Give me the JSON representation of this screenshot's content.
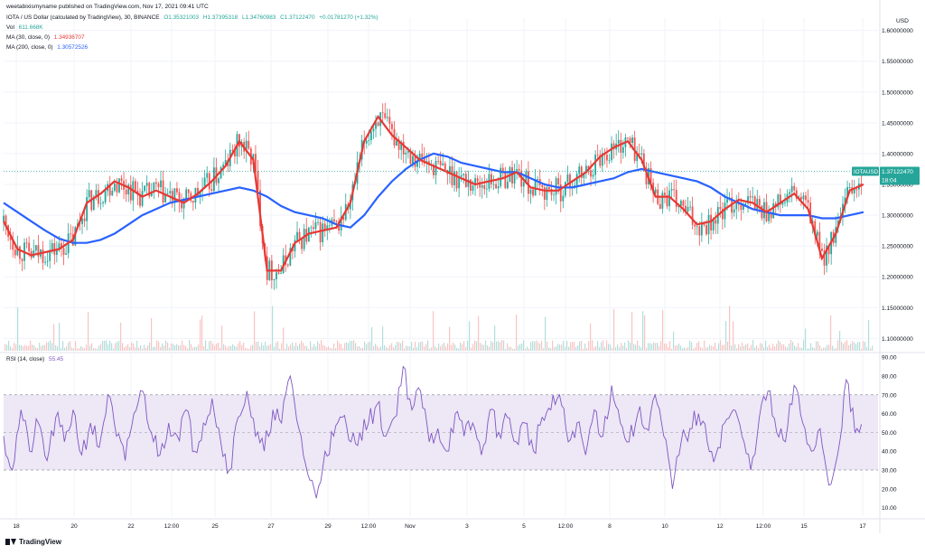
{
  "attribution": "weetabixismyname published on TradingView.com, Nov 17, 2021 09:41 UTC",
  "symbol_line": {
    "title": "IOTA / US Dollar (calculated by TradingView), 30, BINANCE",
    "open": "O1.35321003",
    "high": "H1.37395318",
    "low": "L1.34760983",
    "close": "C1.37122470",
    "change": "+0.01781270 (+1.32%)"
  },
  "indicators": {
    "vol": {
      "label": "Vol",
      "value": "611.668K"
    },
    "ma30": {
      "label": "MA (30, close, 0)",
      "value": "1.34936707"
    },
    "ma200": {
      "label": "MA (200, close, 0)",
      "value": "1.30572526"
    },
    "rsi": {
      "label": "RSI (14, close)",
      "value": "55.45"
    }
  },
  "currency": "USD",
  "price_tag": {
    "symbol": "IOTAUSD",
    "price": "1.37122470",
    "countdown": "18:04"
  },
  "footer_brand": "TradingView",
  "colors": {
    "up": "#26a69a",
    "down": "#ef5350",
    "ma30": "#e53935",
    "ma200": "#2962ff",
    "rsi": "#7e57c2",
    "rsi_band": "#ede7f6",
    "price_tag": "#26a69a"
  },
  "chart_data": [
    {
      "type": "candlestick",
      "symbol": "IOTA / US Dollar",
      "interval": "30",
      "exchange": "BINANCE",
      "x_tick_labels": [
        "18",
        "20",
        "22",
        "12:00",
        "25",
        "27",
        "29",
        "12:00",
        "Nov",
        "3",
        "5",
        "12:00",
        "8",
        "10",
        "12",
        "12:00",
        "15",
        "17"
      ],
      "y_tick_labels": [
        "1.60000000",
        "1.55000000",
        "1.50000000",
        "1.45000000",
        "1.40000000",
        "1.35000000",
        "1.30000000",
        "1.25000000",
        "1.20000000",
        "1.15000000",
        "1.10000000"
      ],
      "ylim": [
        1.08,
        1.62
      ],
      "grid": true,
      "series": [
        {
          "name": "MA (30, close, 0)",
          "values": [
            1.29,
            1.245,
            1.235,
            1.24,
            1.245,
            1.26,
            1.32,
            1.335,
            1.355,
            1.345,
            1.33,
            1.34,
            1.33,
            1.32,
            1.335,
            1.355,
            1.38,
            1.42,
            1.39,
            1.21,
            1.21,
            1.255,
            1.27,
            1.275,
            1.28,
            1.32,
            1.42,
            1.46,
            1.43,
            1.41,
            1.39,
            1.38,
            1.37,
            1.36,
            1.35,
            1.355,
            1.36,
            1.37,
            1.345,
            1.34,
            1.34,
            1.355,
            1.37,
            1.395,
            1.41,
            1.42,
            1.39,
            1.33,
            1.33,
            1.31,
            1.285,
            1.29,
            1.31,
            1.325,
            1.32,
            1.305,
            1.32,
            1.335,
            1.31,
            1.23,
            1.27,
            1.34,
            1.35
          ]
        },
        {
          "name": "MA (200, close, 0)",
          "values": [
            1.32,
            1.305,
            1.29,
            1.275,
            1.262,
            1.255,
            1.255,
            1.26,
            1.27,
            1.285,
            1.3,
            1.31,
            1.32,
            1.325,
            1.33,
            1.335,
            1.34,
            1.345,
            1.34,
            1.33,
            1.315,
            1.305,
            1.3,
            1.295,
            1.285,
            1.28,
            1.3,
            1.33,
            1.355,
            1.375,
            1.39,
            1.4,
            1.395,
            1.385,
            1.38,
            1.375,
            1.37,
            1.37,
            1.36,
            1.35,
            1.345,
            1.345,
            1.35,
            1.355,
            1.36,
            1.37,
            1.375,
            1.37,
            1.365,
            1.36,
            1.355,
            1.345,
            1.33,
            1.32,
            1.31,
            1.305,
            1.3,
            1.3,
            1.3,
            1.295,
            1.295,
            1.3,
            1.305
          ]
        }
      ],
      "last_price": 1.3712247
    },
    {
      "type": "line",
      "name": "RSI (14, close)",
      "y_tick_labels": [
        "90.00",
        "80.00",
        "70.00",
        "60.00",
        "50.00",
        "40.00",
        "30.00",
        "20.00",
        "10.00"
      ],
      "ylim": [
        5,
        92
      ],
      "band": [
        30,
        70
      ],
      "midline": 50,
      "values": [
        48,
        30,
        62,
        40,
        55,
        35,
        58,
        45,
        62,
        38,
        55,
        42,
        70,
        48,
        35,
        60,
        72,
        50,
        38,
        55,
        48,
        62,
        40,
        55,
        68,
        45,
        30,
        58,
        72,
        48,
        40,
        62,
        55,
        80,
        52,
        28,
        15,
        40,
        48,
        58,
        45,
        50,
        55,
        65,
        48,
        58,
        85,
        62,
        72,
        45,
        52,
        40,
        60,
        48,
        55,
        38,
        62,
        50,
        58,
        45,
        55,
        40,
        58,
        62,
        70,
        45,
        55,
        38,
        62,
        48,
        75,
        55,
        45,
        60,
        52,
        70,
        48,
        20,
        45,
        52,
        60,
        45,
        38,
        55,
        62,
        48,
        30,
        58,
        72,
        50,
        45,
        75,
        55,
        40,
        52,
        22,
        38,
        78,
        50,
        55
      ]
    }
  ]
}
